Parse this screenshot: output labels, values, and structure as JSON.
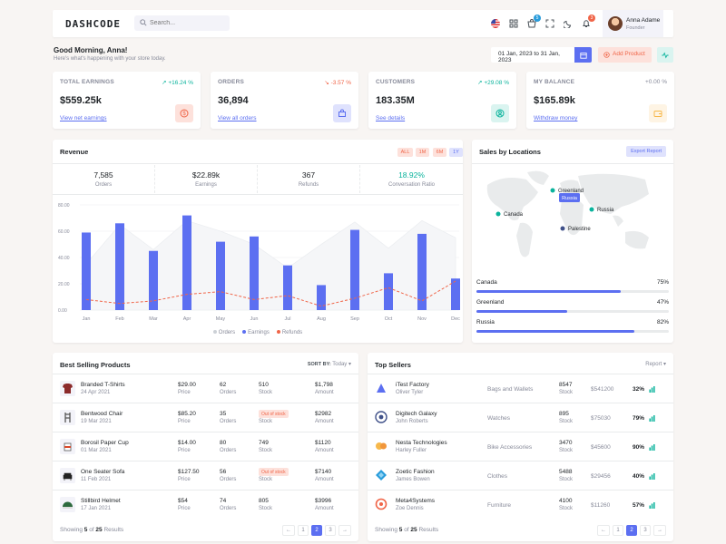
{
  "header": {
    "logo": "DASHCODE",
    "search_placeholder": "Search...",
    "cart_count": "5",
    "notification_count": "3",
    "user_name": "Anna Adame",
    "user_role": "Founder"
  },
  "greeting": {
    "title": "Good Morning, Anna!",
    "subtitle": "Here's what's happening with your store today.",
    "date_range": "01 Jan, 2023 to 31 Jan, 2023",
    "add_product": "Add Product"
  },
  "kpis": [
    {
      "label": "Total Earnings",
      "delta": "+16.24 %",
      "value": "$559.25k",
      "link": "View net earnings",
      "tone": "up",
      "icon": "dollar-icon",
      "icon_color": "#f06548",
      "icon_bg": "#fde1db"
    },
    {
      "label": "Orders",
      "delta": "-3.57 %",
      "value": "36,894",
      "link": "View all orders",
      "tone": "down",
      "icon": "bag-icon",
      "icon_color": "#5c6ff1",
      "icon_bg": "#dfe2fd"
    },
    {
      "label": "Customers",
      "delta": "+29.08 %",
      "value": "183.35M",
      "link": "See details",
      "tone": "up",
      "icon": "user-icon",
      "icon_color": "#0ab39c",
      "icon_bg": "#daf4f0"
    },
    {
      "label": "My Balance",
      "delta": "+0.00 %",
      "value": "$165.89k",
      "link": "Withdraw money",
      "tone": "flat",
      "icon": "wallet-icon",
      "icon_color": "#f7b84b",
      "icon_bg": "#fef4e4"
    }
  ],
  "revenue": {
    "title": "Revenue",
    "filters": [
      "ALL",
      "1M",
      "6M",
      "1Y"
    ],
    "stats": [
      {
        "value": "7,585",
        "label": "Orders"
      },
      {
        "value": "$22.89k",
        "label": "Earnings"
      },
      {
        "value": "367",
        "label": "Refunds"
      },
      {
        "value": "18.92%",
        "label": "Conversation Ratio"
      }
    ]
  },
  "chart_data": {
    "type": "bar",
    "categories": [
      "Jan",
      "Feb",
      "Mar",
      "Apr",
      "May",
      "Jun",
      "Jul",
      "Aug",
      "Sep",
      "Oct",
      "Nov",
      "Dec"
    ],
    "y_ticks": [
      "0.00",
      "20.00",
      "40.00",
      "60.00",
      "80.00"
    ],
    "ylim": [
      0,
      80
    ],
    "series": [
      {
        "name": "Orders",
        "type": "area",
        "values": [
          35,
          65,
          46,
          68,
          60,
          50,
          32,
          50,
          67,
          47,
          68,
          55
        ],
        "color": "#e9ebec"
      },
      {
        "name": "Earnings",
        "type": "bar",
        "values": [
          59,
          66,
          45,
          72,
          52,
          56,
          34,
          19,
          61,
          28,
          58,
          24
        ],
        "color": "#5c6ff1"
      },
      {
        "name": "Refunds",
        "type": "line",
        "values": [
          8,
          5,
          7,
          12,
          14,
          8,
          11,
          3,
          9,
          17,
          7,
          22
        ],
        "color": "#f06548"
      }
    ],
    "legend": [
      "Orders",
      "Earnings",
      "Refunds"
    ],
    "legend_position": "bottom"
  },
  "locations": {
    "title": "Sales by Locations",
    "export": "Export Report",
    "markers": [
      "Greenland",
      "Canada",
      "Russia",
      "Palestine"
    ],
    "tooltip": "Russia",
    "items": [
      {
        "name": "Canada",
        "value": "75%",
        "pct": 75
      },
      {
        "name": "Greenland",
        "value": "47%",
        "pct": 47
      },
      {
        "name": "Russia",
        "value": "82%",
        "pct": 82
      }
    ]
  },
  "products": {
    "title": "Best Selling Products",
    "sort_label": "SORT BY:",
    "sort_value": "Today",
    "rows": [
      {
        "name": "Branded T-Shirts",
        "date": "24 Apr 2021",
        "price": "$29.00",
        "orders": "62",
        "stock": "510",
        "stock_oos": false,
        "amount": "$1,798"
      },
      {
        "name": "Bentwood Chair",
        "date": "19 Mar 2021",
        "price": "$85.20",
        "orders": "35",
        "stock": "Out of stock",
        "stock_oos": true,
        "amount": "$2982"
      },
      {
        "name": "Borosil Paper Cup",
        "date": "01 Mar 2021",
        "price": "$14.00",
        "orders": "80",
        "stock": "749",
        "stock_oos": false,
        "amount": "$1120"
      },
      {
        "name": "One Seater Sofa",
        "date": "11 Feb 2021",
        "price": "$127.50",
        "orders": "56",
        "stock": "Out of stock",
        "stock_oos": true,
        "amount": "$7140"
      },
      {
        "name": "Stillbird Helmet",
        "date": "17 Jan 2021",
        "price": "$54",
        "orders": "74",
        "stock": "805",
        "stock_oos": false,
        "amount": "$3996"
      }
    ],
    "col_price": "Price",
    "col_orders": "Orders",
    "col_stock": "Stock",
    "col_amount": "Amount",
    "footer_prefix": "Showing",
    "footer_count": "5",
    "footer_of": "of",
    "footer_total": "25",
    "footer_suffix": "Results"
  },
  "sellers": {
    "title": "Top Sellers",
    "report": "Report",
    "rows": [
      {
        "name": "iTest Factory",
        "owner": "Oliver Tyler",
        "category": "Bags and Wallets",
        "stock": "8547",
        "amount": "$541200",
        "pct": "32%",
        "logo_color": "#5c6ff1"
      },
      {
        "name": "Digitech Galaxy",
        "owner": "John Roberts",
        "category": "Watches",
        "stock": "895",
        "amount": "$75030",
        "pct": "79%",
        "logo_color": "#405189"
      },
      {
        "name": "Nesta Technologies",
        "owner": "Harley Fuller",
        "category": "Bike Accessories",
        "stock": "3470",
        "amount": "$45600",
        "pct": "90%",
        "logo_color": "#f7b84b"
      },
      {
        "name": "Zoetic Fashion",
        "owner": "James Bowen",
        "category": "Clothes",
        "stock": "5488",
        "amount": "$29456",
        "pct": "40%",
        "logo_color": "#299cdb"
      },
      {
        "name": "Meta4Systems",
        "owner": "Zoe Dennis",
        "category": "Furniture",
        "stock": "4100",
        "amount": "$11260",
        "pct": "57%",
        "logo_color": "#f06548"
      }
    ],
    "col_stock": "Stock",
    "footer_prefix": "Showing",
    "footer_count": "5",
    "footer_of": "of",
    "footer_total": "25",
    "footer_suffix": "Results"
  },
  "pagination": {
    "prev": "←",
    "pages": [
      "1",
      "2",
      "3"
    ],
    "active": "2",
    "next": "→"
  }
}
